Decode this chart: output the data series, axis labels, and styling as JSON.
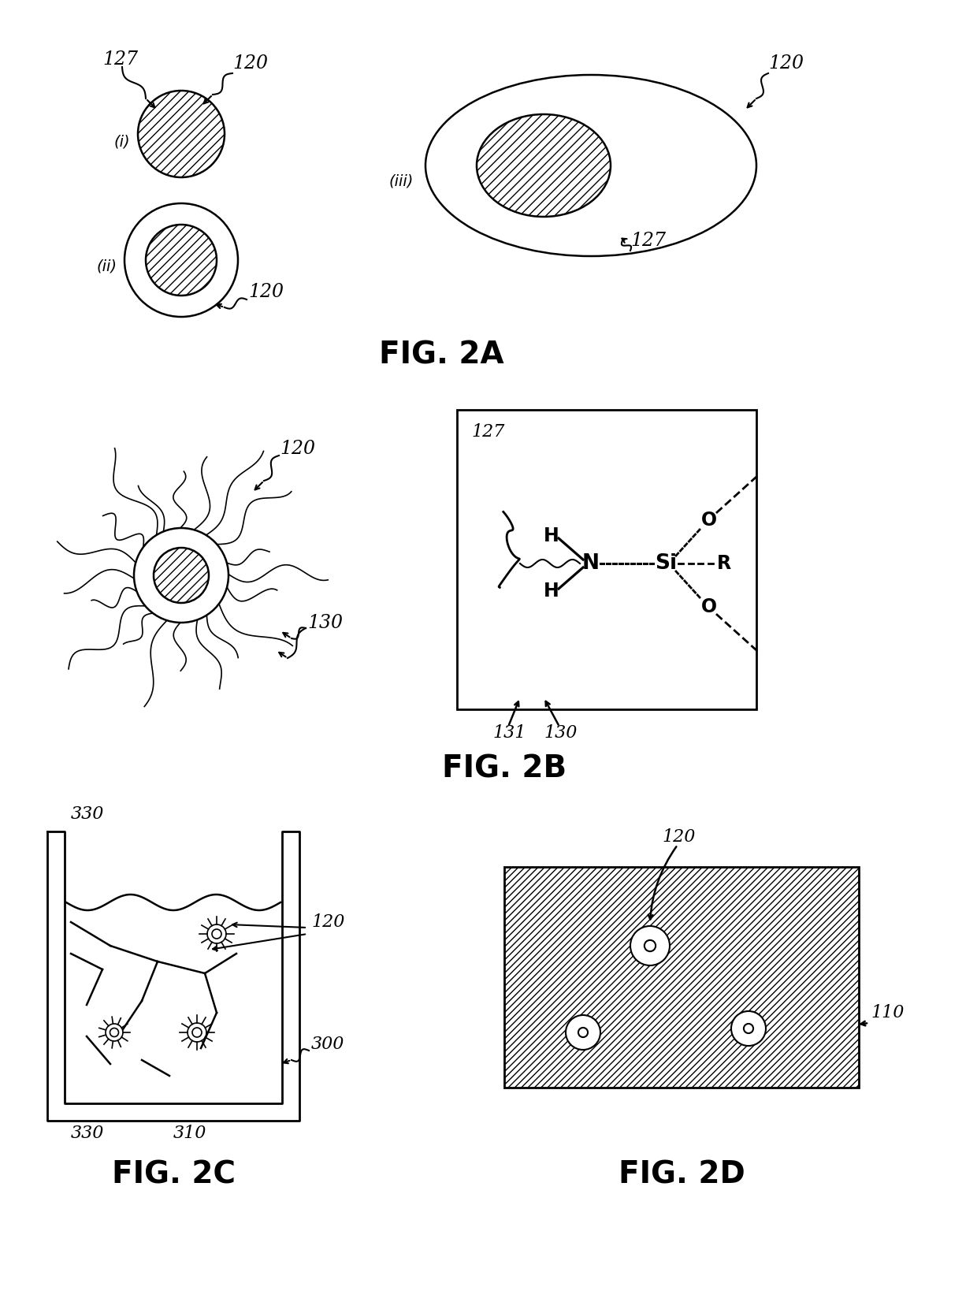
{
  "background_color": "#ffffff",
  "fig2a_label": "FIG. 2A",
  "fig2b_label": "FIG. 2B",
  "fig2c_label": "FIG. 2C",
  "fig2d_label": "FIG. 2D"
}
